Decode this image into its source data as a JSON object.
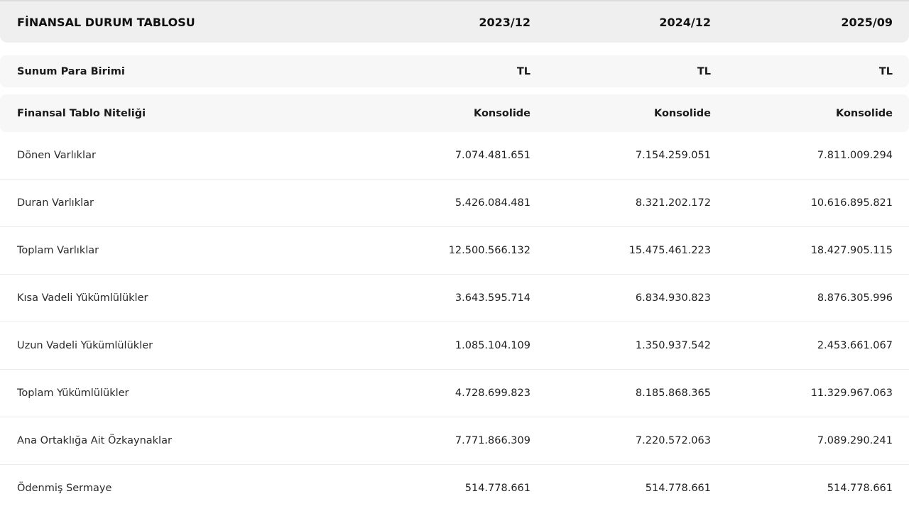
{
  "table": {
    "title": "FİNANSAL DURUM TABLOSU",
    "periods": [
      "2023/12",
      "2024/12",
      "2025/09"
    ],
    "meta_rows": [
      {
        "label": "Sunum Para Birimi",
        "values": [
          "TL",
          "TL",
          "TL"
        ]
      },
      {
        "label": "Finansal Tablo Niteliği",
        "values": [
          "Konsolide",
          "Konsolide",
          "Konsolide"
        ]
      }
    ],
    "rows": [
      {
        "label": "Dönen Varlıklar",
        "values": [
          "7.074.481.651",
          "7.154.259.051",
          "7.811.009.294"
        ]
      },
      {
        "label": "Duran Varlıklar",
        "values": [
          "5.426.084.481",
          "8.321.202.172",
          "10.616.895.821"
        ]
      },
      {
        "label": "Toplam Varlıklar",
        "values": [
          "12.500.566.132",
          "15.475.461.223",
          "18.427.905.115"
        ]
      },
      {
        "label": "Kısa Vadeli Yükümlülükler",
        "values": [
          "3.643.595.714",
          "6.834.930.823",
          "8.876.305.996"
        ]
      },
      {
        "label": "Uzun Vadeli Yükümlülükler",
        "values": [
          "1.085.104.109",
          "1.350.937.542",
          "2.453.661.067"
        ]
      },
      {
        "label": "Toplam Yükümlülükler",
        "values": [
          "4.728.699.823",
          "8.185.868.365",
          "11.329.967.063"
        ]
      },
      {
        "label": "Ana Ortaklığa Ait Özkaynaklar",
        "values": [
          "7.771.866.309",
          "7.220.572.063",
          "7.089.290.241"
        ]
      },
      {
        "label": "Ödenmiş Sermaye",
        "values": [
          "514.778.661",
          "514.778.661",
          "514.778.661"
        ]
      }
    ]
  }
}
